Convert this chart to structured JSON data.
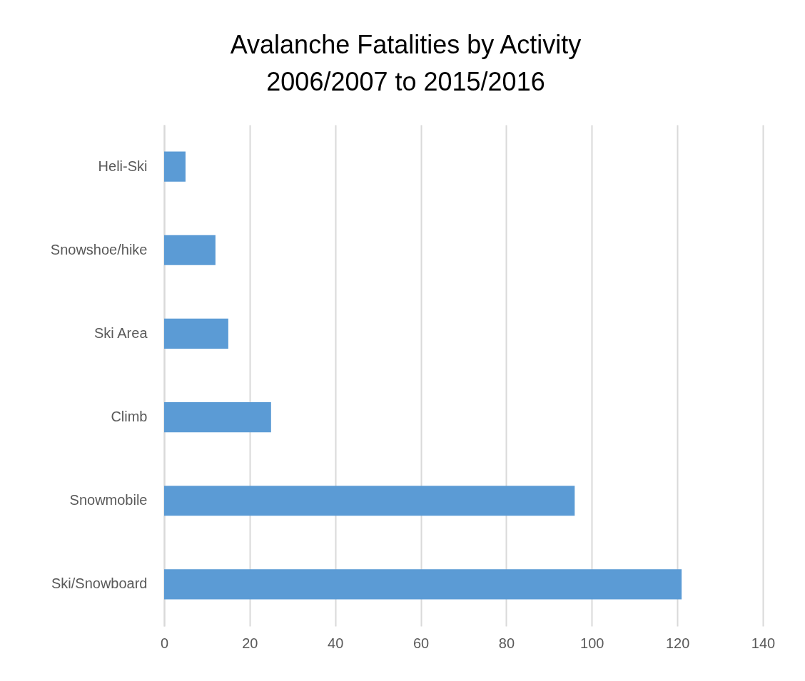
{
  "chart_data": {
    "type": "bar",
    "orientation": "horizontal",
    "title": "Avalanche Fatalities by Activity",
    "subtitle": "2006/2007 to 2015/2016",
    "categories": [
      "Heli-Ski",
      "Snowshoe/hike",
      "Ski Area",
      "Climb",
      "Snowmobile",
      "Ski/Snowboard"
    ],
    "values": [
      5,
      12,
      15,
      25,
      96,
      121
    ],
    "color": "#5b9bd5",
    "xlim": [
      0,
      140
    ],
    "xticks": [
      0,
      20,
      40,
      60,
      80,
      100,
      120,
      140
    ],
    "grid": "x"
  }
}
